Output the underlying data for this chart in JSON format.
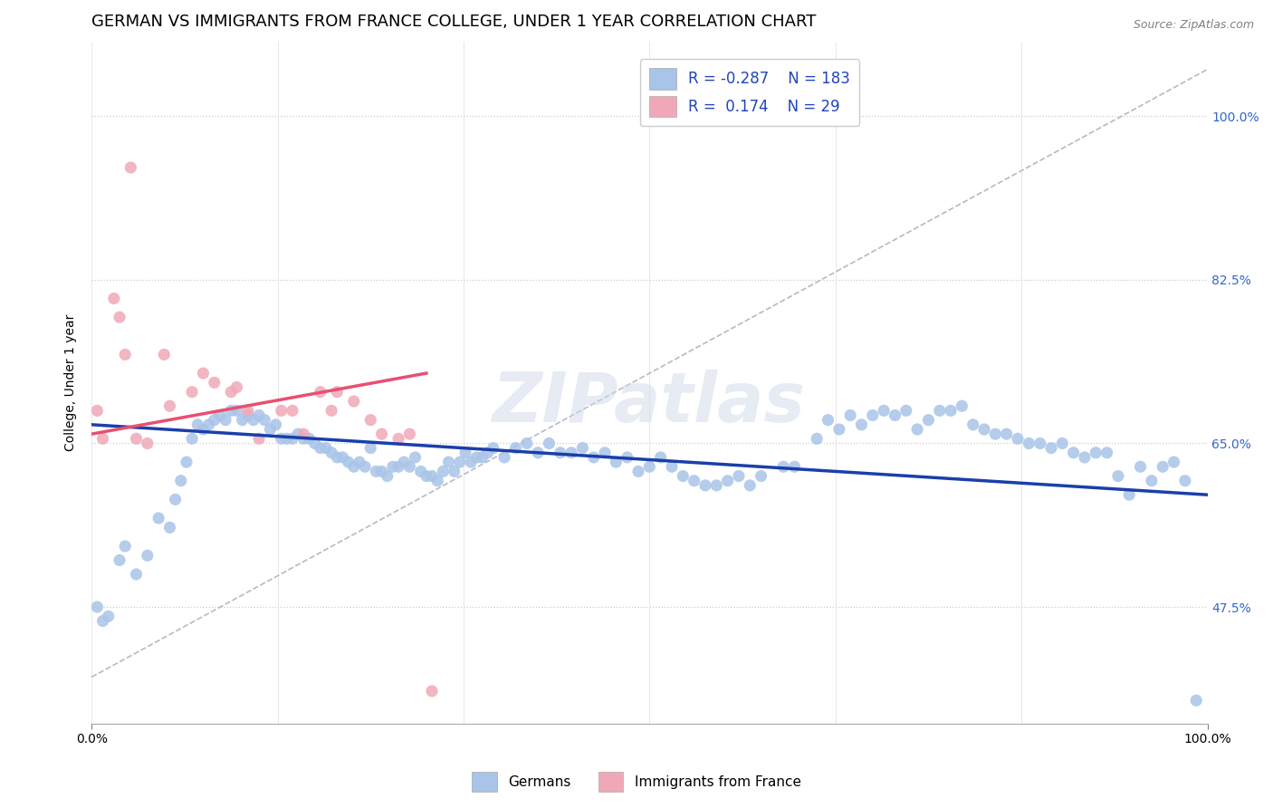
{
  "title": "GERMAN VS IMMIGRANTS FROM FRANCE COLLEGE, UNDER 1 YEAR CORRELATION CHART",
  "source": "Source: ZipAtlas.com",
  "ylabel": "College, Under 1 year",
  "legend_blue_r": "-0.287",
  "legend_blue_n": "183",
  "legend_pink_r": "0.174",
  "legend_pink_n": "29",
  "legend_blue_label": "Germans",
  "legend_pink_label": "Immigrants from France",
  "blue_color": "#a8c4e8",
  "pink_color": "#f0a8b8",
  "blue_line_color": "#1a3faa",
  "pink_line_color": "#e85070",
  "dashed_line_color": "#b8b8c8",
  "watermark": "ZIPatlas",
  "blue_scatter_x": [
    0.5,
    1.0,
    1.5,
    2.5,
    3.0,
    4.0,
    5.0,
    6.0,
    7.0,
    7.5,
    8.0,
    8.5,
    9.0,
    9.5,
    10.0,
    10.5,
    11.0,
    11.5,
    12.0,
    12.5,
    13.0,
    13.5,
    14.0,
    14.5,
    15.0,
    15.5,
    16.0,
    16.5,
    17.0,
    17.5,
    18.0,
    18.5,
    19.0,
    19.5,
    20.0,
    20.5,
    21.0,
    21.5,
    22.0,
    22.5,
    23.0,
    23.5,
    24.0,
    24.5,
    25.0,
    25.5,
    26.0,
    26.5,
    27.0,
    27.5,
    28.0,
    28.5,
    29.0,
    29.5,
    30.0,
    30.5,
    31.0,
    31.5,
    32.0,
    32.5,
    33.0,
    33.5,
    34.0,
    34.5,
    35.0,
    35.5,
    36.0,
    37.0,
    38.0,
    39.0,
    40.0,
    41.0,
    42.0,
    43.0,
    44.0,
    45.0,
    46.0,
    47.0,
    48.0,
    49.0,
    50.0,
    51.0,
    52.0,
    53.0,
    54.0,
    55.0,
    56.0,
    57.0,
    58.0,
    59.0,
    60.0,
    62.0,
    63.0,
    65.0,
    66.0,
    67.0,
    68.0,
    69.0,
    70.0,
    71.0,
    72.0,
    73.0,
    74.0,
    75.0,
    76.0,
    77.0,
    78.0,
    79.0,
    80.0,
    81.0,
    82.0,
    83.0,
    84.0,
    85.0,
    86.0,
    87.0,
    88.0,
    89.0,
    90.0,
    91.0,
    92.0,
    93.0,
    94.0,
    95.0,
    96.0,
    97.0,
    98.0,
    99.0
  ],
  "blue_scatter_y": [
    47.5,
    46.0,
    46.5,
    52.5,
    54.0,
    51.0,
    53.0,
    57.0,
    56.0,
    59.0,
    61.0,
    63.0,
    65.5,
    67.0,
    66.5,
    67.0,
    67.5,
    68.0,
    67.5,
    68.5,
    68.5,
    67.5,
    68.0,
    67.5,
    68.0,
    67.5,
    66.5,
    67.0,
    65.5,
    65.5,
    65.5,
    66.0,
    65.5,
    65.5,
    65.0,
    64.5,
    64.5,
    64.0,
    63.5,
    63.5,
    63.0,
    62.5,
    63.0,
    62.5,
    64.5,
    62.0,
    62.0,
    61.5,
    62.5,
    62.5,
    63.0,
    62.5,
    63.5,
    62.0,
    61.5,
    61.5,
    61.0,
    62.0,
    63.0,
    62.0,
    63.0,
    64.0,
    63.0,
    63.5,
    63.5,
    64.0,
    64.5,
    63.5,
    64.5,
    65.0,
    64.0,
    65.0,
    64.0,
    64.0,
    64.5,
    63.5,
    64.0,
    63.0,
    63.5,
    62.0,
    62.5,
    63.5,
    62.5,
    61.5,
    61.0,
    60.5,
    60.5,
    61.0,
    61.5,
    60.5,
    61.5,
    62.5,
    62.5,
    65.5,
    67.5,
    66.5,
    68.0,
    67.0,
    68.0,
    68.5,
    68.0,
    68.5,
    66.5,
    67.5,
    68.5,
    68.5,
    69.0,
    67.0,
    66.5,
    66.0,
    66.0,
    65.5,
    65.0,
    65.0,
    64.5,
    65.0,
    64.0,
    63.5,
    64.0,
    64.0,
    61.5,
    59.5,
    62.5,
    61.0,
    62.5,
    63.0,
    61.0,
    37.5
  ],
  "pink_scatter_x": [
    0.5,
    1.0,
    2.0,
    2.5,
    3.0,
    4.0,
    5.0,
    6.5,
    7.0,
    9.0,
    10.0,
    11.0,
    12.5,
    13.0,
    14.0,
    15.0,
    17.0,
    18.0,
    19.0,
    20.5,
    21.5,
    22.0,
    23.5,
    25.0,
    26.0,
    27.5,
    28.5,
    30.5
  ],
  "pink_scatter_y": [
    68.5,
    65.5,
    80.5,
    78.5,
    74.5,
    65.5,
    65.0,
    74.5,
    69.0,
    70.5,
    72.5,
    71.5,
    70.5,
    71.0,
    68.5,
    65.5,
    68.5,
    68.5,
    66.0,
    70.5,
    68.5,
    70.5,
    69.5,
    67.5,
    66.0,
    65.5,
    66.0,
    38.5
  ],
  "pink_extra_x": [
    30.5
  ],
  "pink_extra_y": [
    38.5
  ],
  "pink_high_x": [
    3.5
  ],
  "pink_high_y": [
    94.5
  ],
  "blue_line_x0": 0.0,
  "blue_line_x1": 100.0,
  "blue_line_y0": 67.0,
  "blue_line_y1": 59.5,
  "pink_line_x0": 0.0,
  "pink_line_x1": 30.0,
  "pink_line_y0": 66.0,
  "pink_line_y1": 72.5,
  "dashed_line_x0": 0.0,
  "dashed_line_x1": 100.0,
  "dashed_line_y0": 40.0,
  "dashed_line_y1": 105.0,
  "xmin": 0,
  "xmax": 100,
  "ymin": 35.0,
  "ymax": 108.0,
  "ytick_vals": [
    47.5,
    65.0,
    82.5,
    100.0
  ],
  "ytick_labels": [
    "47.5%",
    "65.0%",
    "82.5%",
    "100.0%"
  ],
  "title_fontsize": 13,
  "source_fontsize": 9,
  "axis_fontsize": 10,
  "legend_fontsize": 12
}
